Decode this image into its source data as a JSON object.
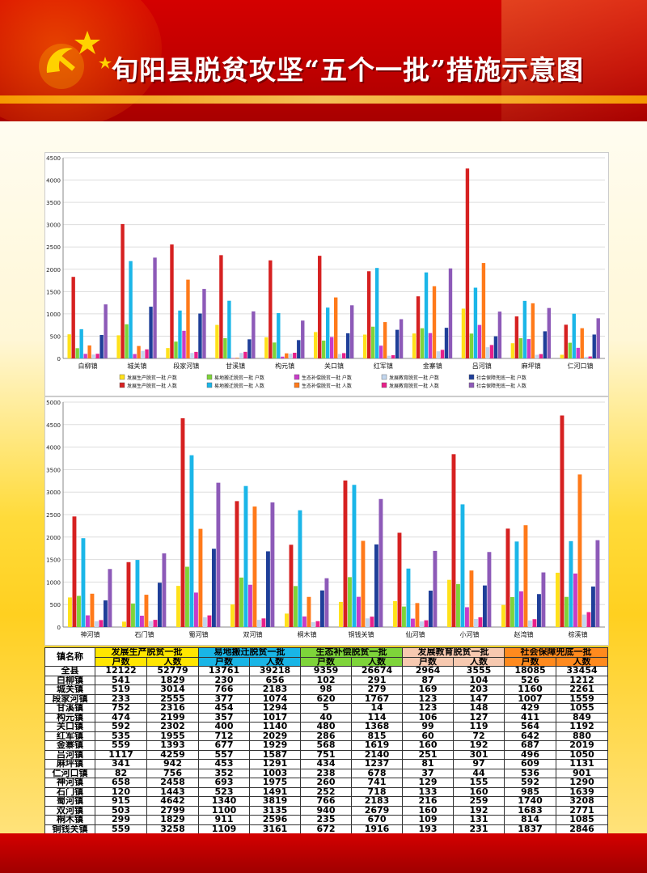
{
  "title": "旬阳县脱贫攻坚“五个一批”措施示意图",
  "colors": {
    "prod_hh": "#ffe11a",
    "prod_pp": "#d62121",
    "reloc_hh": "#7ed43a",
    "reloc_pp": "#1bb6e8",
    "eco_hh": "#c83cc8",
    "eco_pp": "#ff7a1a",
    "edu_hh": "#c2d6ee",
    "edu_pp": "#e8208a",
    "soc_hh": "#1f3f99",
    "soc_pp": "#8d5ab8"
  },
  "chart_data": [
    {
      "type": "bar",
      "ylim": [
        0,
        4500
      ],
      "yticks": [
        0,
        500,
        1000,
        1500,
        2000,
        2500,
        3000,
        3500,
        4000,
        4500
      ],
      "categories": [
        "白柳镇",
        "城关镇",
        "段家河镇",
        "甘溪镇",
        "构元镇",
        "关口镇",
        "红军镇",
        "金寨镇",
        "吕河镇",
        "麻坪镇",
        "仁河口镇"
      ],
      "series": [
        {
          "name": "发展生产脱贫一批 户数",
          "values": [
            541,
            519,
            233,
            752,
            474,
            592,
            535,
            559,
            1117,
            341,
            82
          ]
        },
        {
          "name": "发展生产脱贫一批 人数",
          "values": [
            1829,
            3014,
            2555,
            2316,
            2199,
            2302,
            1955,
            1393,
            4259,
            942,
            756
          ]
        },
        {
          "name": "易地搬迁脱贫一批 户数",
          "values": [
            230,
            766,
            377,
            454,
            357,
            400,
            712,
            677,
            557,
            453,
            352
          ]
        },
        {
          "name": "易地搬迁脱贫一批 人数",
          "values": [
            656,
            2183,
            1074,
            1294,
            1017,
            1140,
            2029,
            1929,
            1587,
            1291,
            1003
          ]
        },
        {
          "name": "生态补偿脱贫一批 户数",
          "values": [
            102,
            98,
            620,
            5,
            40,
            480,
            286,
            568,
            751,
            434,
            238
          ]
        },
        {
          "name": "生态补偿脱贫一批 人数",
          "values": [
            291,
            279,
            1767,
            14,
            114,
            1368,
            815,
            1619,
            2140,
            1237,
            678
          ]
        },
        {
          "name": "发展教育脱贫一批 户数",
          "values": [
            87,
            169,
            123,
            123,
            106,
            99,
            60,
            160,
            251,
            81,
            37
          ]
        },
        {
          "name": "发展教育脱贫一批 人数",
          "values": [
            104,
            203,
            147,
            148,
            127,
            119,
            72,
            192,
            301,
            97,
            44
          ]
        },
        {
          "name": "社会保障兜底一批 户数",
          "values": [
            526,
            1160,
            1007,
            429,
            411,
            564,
            642,
            687,
            496,
            609,
            536
          ]
        },
        {
          "name": "社会保障兜底一批 人数",
          "values": [
            1212,
            2261,
            1559,
            1055,
            849,
            1192,
            880,
            2019,
            1050,
            1131,
            901
          ]
        }
      ]
    },
    {
      "type": "bar",
      "ylim": [
        0,
        5000
      ],
      "yticks": [
        0,
        500,
        1000,
        1500,
        2000,
        2500,
        3000,
        3500,
        4000,
        4500,
        5000
      ],
      "categories": [
        "神河镇",
        "石门镇",
        "蜀河镇",
        "双河镇",
        "桐木镇",
        "铜钱关镇",
        "仙河镇",
        "小河镇",
        "赵湾镇",
        "棕溪镇"
      ],
      "series": [
        {
          "name": "发展生产脱贫一批 户数",
          "values": [
            658,
            120,
            915,
            503,
            299,
            559,
            576,
            1049,
            491,
            1207
          ]
        },
        {
          "name": "发展生产脱贫一批 人数",
          "values": [
            2458,
            1443,
            4642,
            2799,
            1829,
            3258,
            2096,
            3843,
            2188,
            4703
          ]
        },
        {
          "name": "易地搬迁脱贫一批 户数",
          "values": [
            693,
            523,
            1340,
            1100,
            911,
            1109,
            456,
            957,
            667,
            670
          ]
        },
        {
          "name": "易地搬迁脱贫一批 人数",
          "values": [
            1975,
            1491,
            3819,
            3135,
            2596,
            3161,
            1300,
            2727,
            1901,
            1910
          ]
        },
        {
          "name": "生态补偿脱贫一批 户数",
          "values": [
            260,
            252,
            766,
            940,
            235,
            672,
            187,
            441,
            794,
            1190
          ]
        },
        {
          "name": "生态补偿脱贫一批 人数",
          "values": [
            741,
            718,
            2183,
            2679,
            670,
            1916,
            533,
            1257,
            2263,
            3392
          ]
        },
        {
          "name": "发展教育脱贫一批 户数",
          "values": [
            129,
            133,
            216,
            160,
            109,
            193,
            125,
            180,
            146,
            277
          ]
        },
        {
          "name": "发展教育脱贫一批 人数",
          "values": [
            155,
            160,
            259,
            192,
            131,
            231,
            150,
            216,
            175,
            332
          ]
        },
        {
          "name": "社会保障兜底一批 户数",
          "values": [
            592,
            985,
            1740,
            1683,
            814,
            1837,
            809,
            924,
            733,
            901
          ]
        },
        {
          "name": "社会保障兜底一批 人数",
          "values": [
            1290,
            1639,
            3208,
            2771,
            1085,
            2846,
            1693,
            1668,
            1214,
            1931
          ]
        }
      ]
    }
  ],
  "legend": [
    [
      "发展生产脱贫一批 户数",
      "易地搬迁脱贫一批 户数",
      "生态补偿脱贫一批 户数",
      "发展教育脱贫一批 户数",
      "社会保障兜底一批 户数"
    ],
    [
      "发展生产脱贫一批 人数",
      "易地搬迁脱贫一批 人数",
      "生态补偿脱贫一批 人数",
      "发展教育脱贫一批 人数",
      "社会保障兜底一批 人数"
    ]
  ],
  "table": {
    "header_name": "镇名称",
    "groups": [
      "发展生产脱贫一批",
      "易地搬迁脱贫一批",
      "生态补偿脱贫一批",
      "发展教育脱贫一批",
      "社会保障兜底一批"
    ],
    "sub_hh": "户数",
    "sub_pp": "人数",
    "rows": [
      [
        "全县",
        "12122",
        "52779",
        "13761",
        "39218",
        "9359",
        "26674",
        "2964",
        "3555",
        "18085",
        "33454"
      ],
      [
        "白柳镇",
        "541",
        "1829",
        "230",
        "656",
        "102",
        "291",
        "87",
        "104",
        "526",
        "1212"
      ],
      [
        "城关镇",
        "519",
        "3014",
        "766",
        "2183",
        "98",
        "279",
        "169",
        "203",
        "1160",
        "2261"
      ],
      [
        "段家河镇",
        "233",
        "2555",
        "377",
        "1074",
        "620",
        "1767",
        "123",
        "147",
        "1007",
        "1559"
      ],
      [
        "甘溪镇",
        "752",
        "2316",
        "454",
        "1294",
        "5",
        "14",
        "123",
        "148",
        "429",
        "1055"
      ],
      [
        "构元镇",
        "474",
        "2199",
        "357",
        "1017",
        "40",
        "114",
        "106",
        "127",
        "411",
        "849"
      ],
      [
        "关口镇",
        "592",
        "2302",
        "400",
        "1140",
        "480",
        "1368",
        "99",
        "119",
        "564",
        "1192"
      ],
      [
        "红军镇",
        "535",
        "1955",
        "712",
        "2029",
        "286",
        "815",
        "60",
        "72",
        "642",
        "880"
      ],
      [
        "金寨镇",
        "559",
        "1393",
        "677",
        "1929",
        "568",
        "1619",
        "160",
        "192",
        "687",
        "2019"
      ],
      [
        "吕河镇",
        "1117",
        "4259",
        "557",
        "1587",
        "751",
        "2140",
        "251",
        "301",
        "496",
        "1050"
      ],
      [
        "麻坪镇",
        "341",
        "942",
        "453",
        "1291",
        "434",
        "1237",
        "81",
        "97",
        "609",
        "1131"
      ],
      [
        "仁河口镇",
        "82",
        "756",
        "352",
        "1003",
        "238",
        "678",
        "37",
        "44",
        "536",
        "901"
      ],
      [
        "神河镇",
        "658",
        "2458",
        "693",
        "1975",
        "260",
        "741",
        "129",
        "155",
        "592",
        "1290"
      ],
      [
        "石门镇",
        "120",
        "1443",
        "523",
        "1491",
        "252",
        "718",
        "133",
        "160",
        "985",
        "1639"
      ],
      [
        "蜀河镇",
        "915",
        "4642",
        "1340",
        "3819",
        "766",
        "2183",
        "216",
        "259",
        "1740",
        "3208"
      ],
      [
        "双河镇",
        "503",
        "2799",
        "1100",
        "3135",
        "940",
        "2679",
        "160",
        "192",
        "1683",
        "2771"
      ],
      [
        "桐木镇",
        "299",
        "1829",
        "911",
        "2596",
        "235",
        "670",
        "109",
        "131",
        "814",
        "1085"
      ],
      [
        "铜钱关镇",
        "559",
        "3258",
        "1109",
        "3161",
        "672",
        "1916",
        "193",
        "231",
        "1837",
        "2846"
      ],
      [
        "仙河镇",
        "576",
        "2096",
        "456",
        "1300",
        "187",
        "533",
        "125",
        "150",
        "809",
        "1693"
      ],
      [
        "小河镇",
        "1049",
        "3843",
        "957",
        "2727",
        "441",
        "1257",
        "180",
        "216",
        "924",
        "1668"
      ],
      [
        "赵湾镇",
        "491",
        "2188",
        "667",
        "1901",
        "794",
        "2263",
        "146",
        "175",
        "733",
        "1214"
      ],
      [
        "棕溪镇",
        "1207",
        "4703",
        "670",
        "1910",
        "1190",
        "3392",
        "277",
        "332",
        "901",
        "1931"
      ]
    ]
  }
}
